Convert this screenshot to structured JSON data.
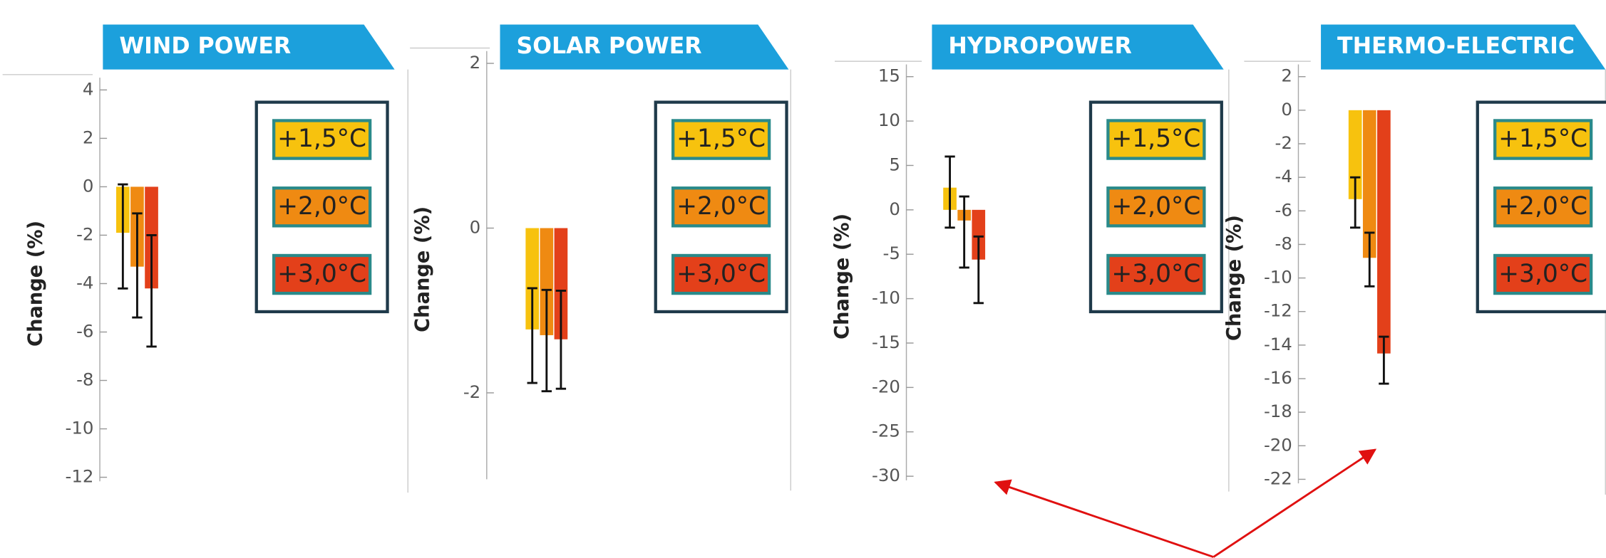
{
  "chart_data": [
    {
      "type": "bar",
      "title": "WIND POWER",
      "y_label": "Change (%)",
      "categories": [
        null
      ],
      "series": [
        {
          "name": "+1,5°C",
          "color": "#f7c20e",
          "values": [
            -1.9
          ],
          "error_low": [
            -4.2
          ],
          "error_high": [
            0.1
          ]
        },
        {
          "name": "+2,0°C",
          "color": "#ef8a12",
          "values": [
            -3.3
          ],
          "error_low": [
            -5.4
          ],
          "error_high": [
            -1.1
          ]
        },
        {
          "name": "+3,0°C",
          "color": "#e3401a",
          "values": [
            -4.2
          ],
          "error_low": [
            -6.6
          ],
          "error_high": [
            -2.0
          ]
        }
      ],
      "ylim": [
        -12,
        4
      ],
      "yticks": [
        -12,
        -10,
        -8,
        -6,
        -4,
        -2,
        0,
        2,
        4
      ]
    },
    {
      "type": "bar",
      "title": "SOLAR POWER",
      "y_label": "Change (%)",
      "categories": [
        null
      ],
      "series": [
        {
          "name": "+1,5°C",
          "color": "#f7c20e",
          "values": [
            -1.23
          ],
          "error_low": [
            -1.88
          ],
          "error_high": [
            -0.73
          ]
        },
        {
          "name": "+2,0°C",
          "color": "#ef8a12",
          "values": [
            -1.3
          ],
          "error_low": [
            -1.98
          ],
          "error_high": [
            -0.75
          ]
        },
        {
          "name": "+3,0°C",
          "color": "#e3401a",
          "values": [
            -1.35
          ],
          "error_low": [
            -1.95
          ],
          "error_high": [
            -0.76
          ]
        }
      ],
      "ylim": [
        -3,
        2
      ],
      "yticks": [
        -2,
        0,
        2
      ]
    },
    {
      "type": "bar",
      "title": "HYDROPOWER",
      "y_label": "Change (%)",
      "categories": [
        null
      ],
      "series": [
        {
          "name": "+1,5°C",
          "color": "#f7c20e",
          "values": [
            2.5
          ],
          "error_low": [
            -2.0
          ],
          "error_high": [
            6.0
          ]
        },
        {
          "name": "+2,0°C",
          "color": "#ef8a12",
          "values": [
            -1.2
          ],
          "error_low": [
            -6.5
          ],
          "error_high": [
            1.5
          ]
        },
        {
          "name": "+3,0°C",
          "color": "#e3401a",
          "values": [
            -5.6
          ],
          "error_low": [
            -10.5
          ],
          "error_high": [
            -3.0
          ]
        }
      ],
      "ylim": [
        -30,
        15
      ],
      "yticks": [
        -30,
        -25,
        -20,
        -15,
        -10,
        -5,
        0,
        5,
        10,
        15
      ]
    },
    {
      "type": "bar",
      "title": "THERMO-ELECTRIC",
      "y_label": "Change (%)",
      "categories": [
        null
      ],
      "series": [
        {
          "name": "+1,5°C",
          "color": "#f7c20e",
          "values": [
            -5.3
          ],
          "error_low": [
            -7.0
          ],
          "error_high": [
            -4.0
          ]
        },
        {
          "name": "+2,0°C",
          "color": "#ef8a12",
          "values": [
            -8.8
          ],
          "error_low": [
            -10.5
          ],
          "error_high": [
            -7.3
          ]
        },
        {
          "name": "+3,0°C",
          "color": "#e3401a",
          "values": [
            -14.5
          ],
          "error_low": [
            -16.3
          ],
          "error_high": [
            -13.5
          ]
        }
      ],
      "ylim": [
        -22,
        2
      ],
      "yticks": [
        -22,
        -20,
        -18,
        -16,
        -14,
        -12,
        -10,
        -8,
        -6,
        -4,
        -2,
        0,
        2
      ]
    }
  ]
}
